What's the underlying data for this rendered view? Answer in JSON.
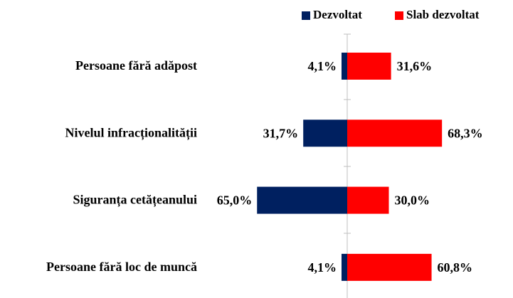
{
  "chart_data": {
    "type": "diverging-bar",
    "categories": [
      "Persoane fără adăpost",
      "Nivelul infracționalității",
      "Siguranța cetățeanului",
      "Persoane fără loc de muncă"
    ],
    "series": [
      {
        "name": "Dezvoltat",
        "color": "#002060",
        "values": [
          4.1,
          31.7,
          65.0,
          4.1
        ],
        "value_labels": [
          "4,1%",
          "31,7%",
          "65,0%",
          "4,1%"
        ]
      },
      {
        "name": "Slab dezvoltat",
        "color": "#ff0000",
        "values": [
          31.6,
          68.3,
          30.0,
          60.8
        ],
        "value_labels": [
          "31,6%",
          "68,3%",
          "30,0%",
          "60,8%"
        ]
      }
    ]
  }
}
